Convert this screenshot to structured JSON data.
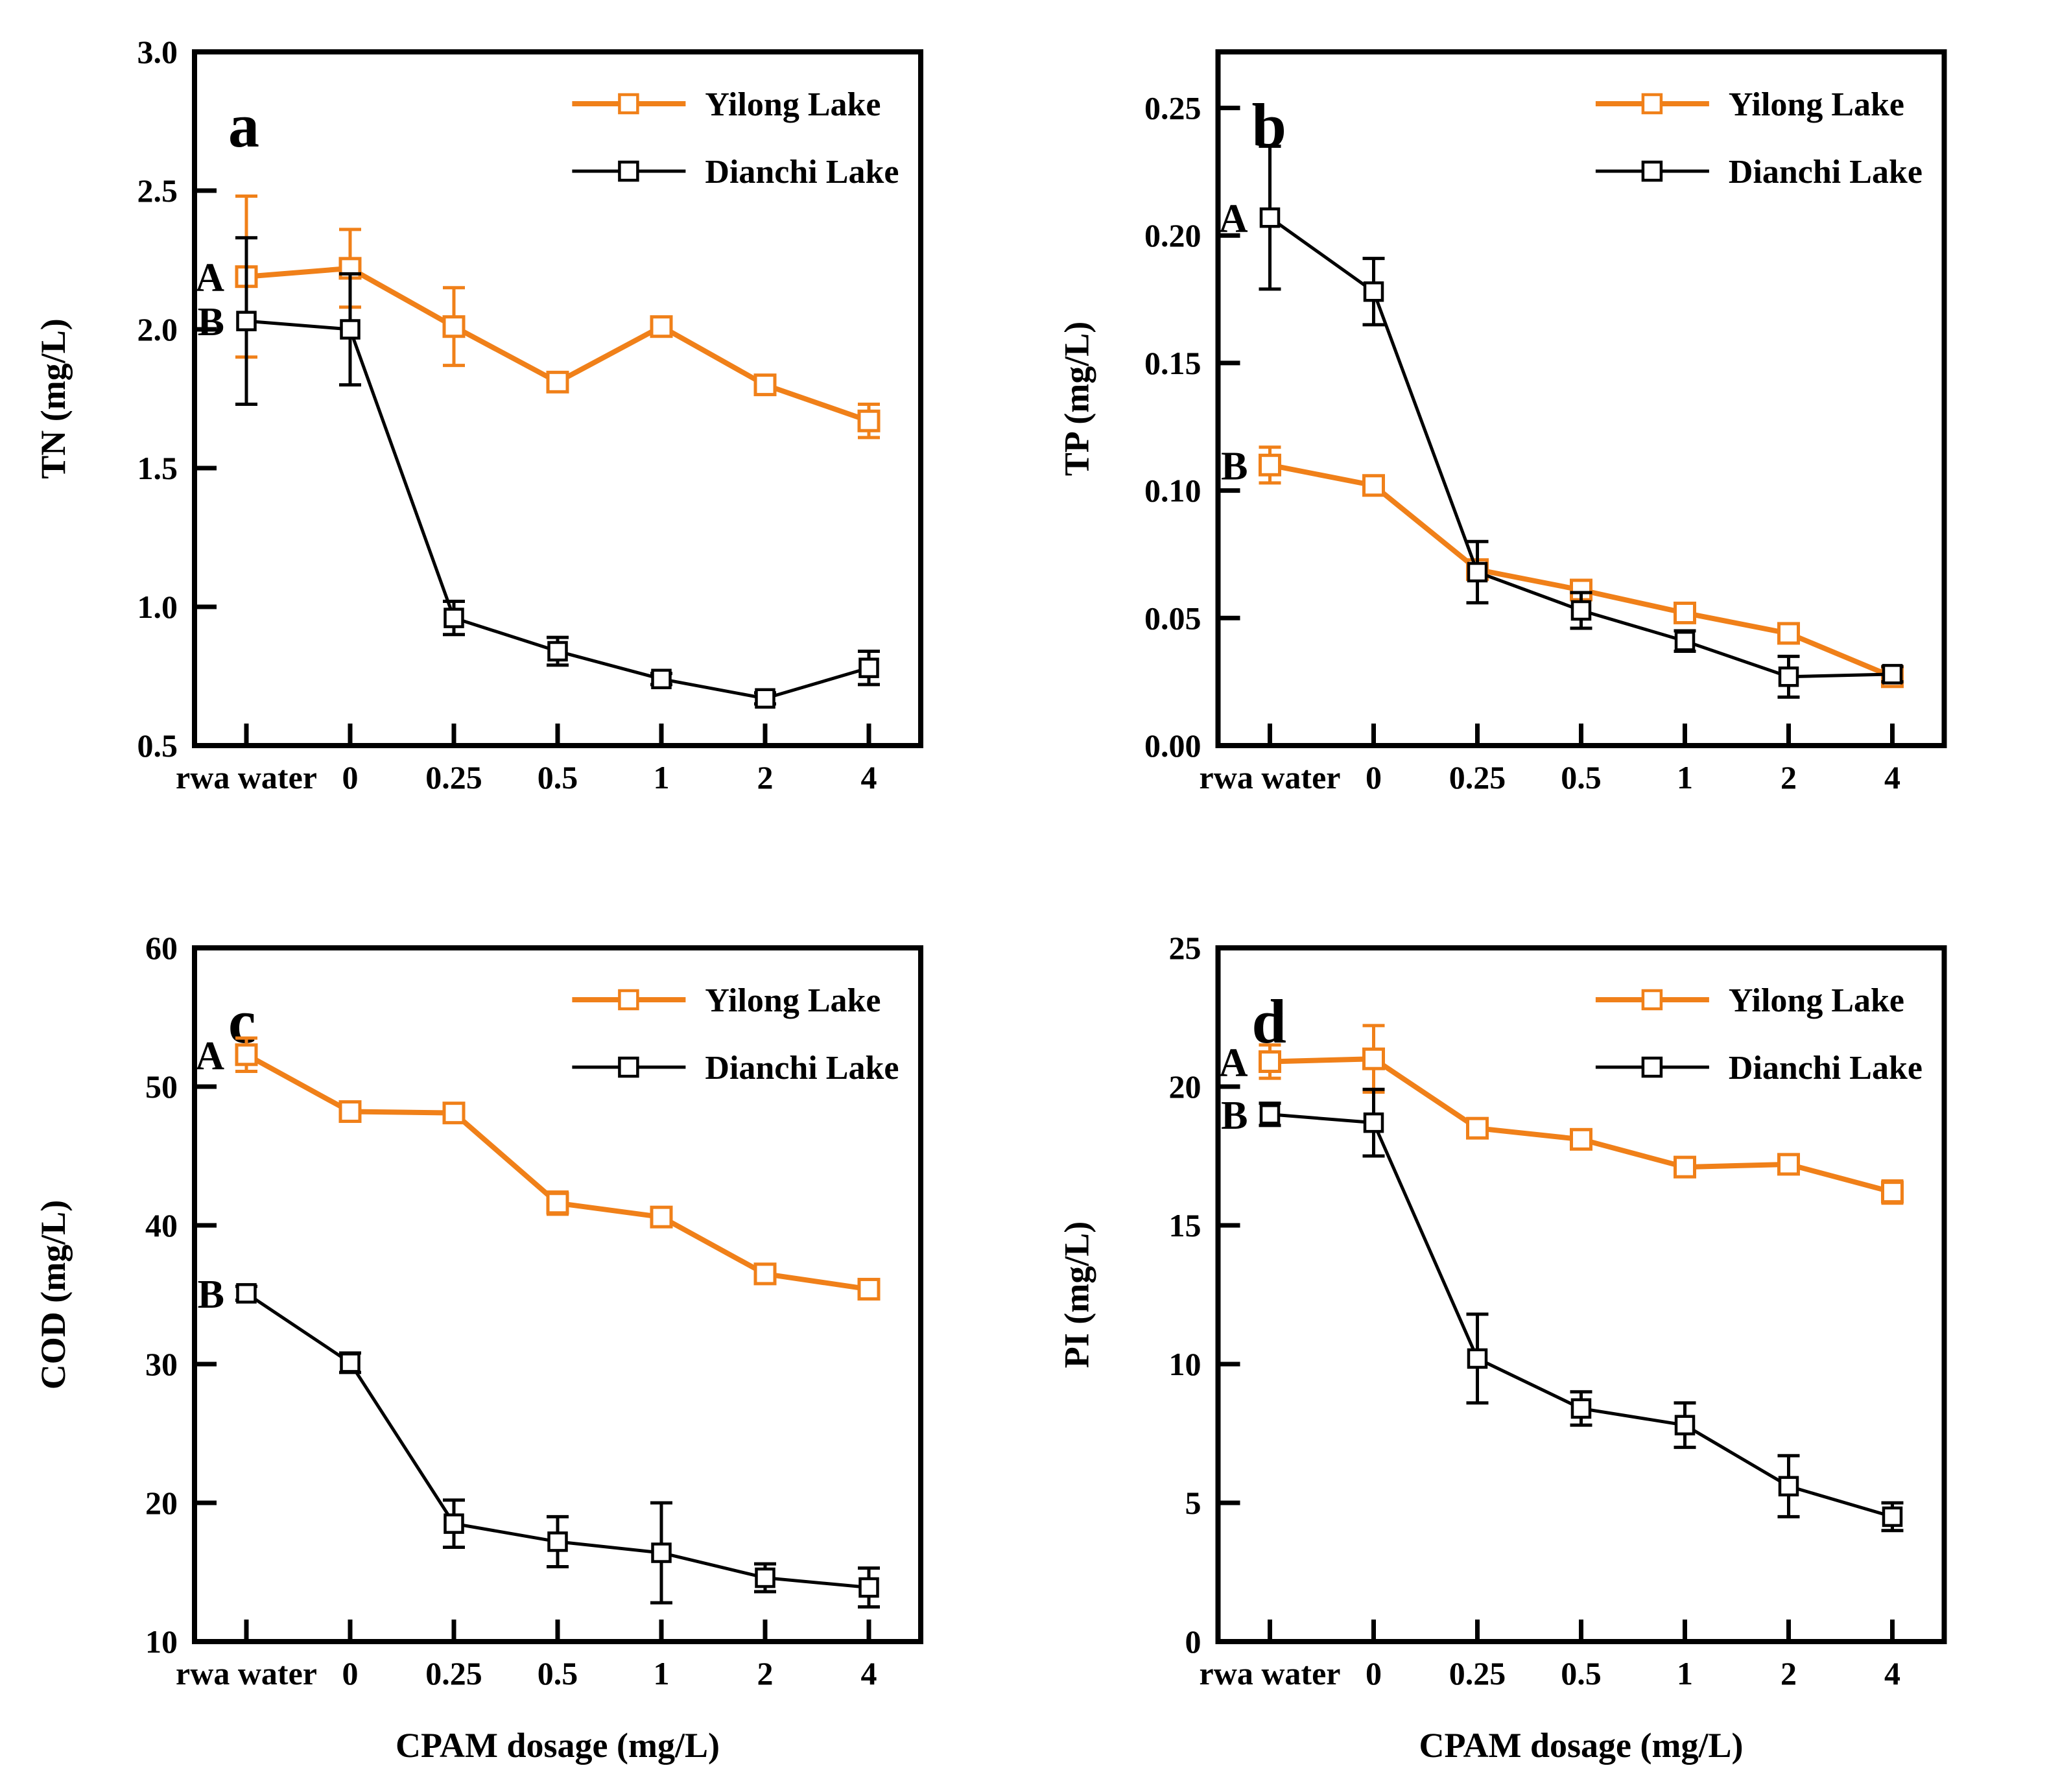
{
  "page": {
    "background": "#FFFFFF",
    "accent_orange": "#F08019",
    "series_black": "#000000"
  },
  "chart_data": [
    {
      "panel": "a",
      "type": "line",
      "ylabel": "TN (mg/L)",
      "xlabel": "",
      "categories": [
        "rwa water",
        "0",
        "0.25",
        "0.5",
        "1",
        "2",
        "4"
      ],
      "ylim": [
        0.5,
        3.0
      ],
      "yticks": [
        {
          "value": 0.5,
          "label": "0.5"
        },
        {
          "value": 1.0,
          "label": "1.0"
        },
        {
          "value": 1.5,
          "label": "1.5"
        },
        {
          "value": 2.0,
          "label": "2.0"
        },
        {
          "value": 2.5,
          "label": "2.5"
        },
        {
          "value": 3.0,
          "label": "3.0"
        }
      ],
      "grid": false,
      "legend_position": "top-right",
      "series": [
        {
          "name": "Yilong Lake",
          "color": "#F08019",
          "marker": "open-square",
          "values": [
            2.19,
            2.22,
            2.01,
            1.81,
            2.01,
            1.8,
            1.67
          ],
          "errors": [
            0.29,
            0.14,
            0.14,
            0.03,
            0.03,
            0.03,
            0.06
          ]
        },
        {
          "name": "Dianchi Lake",
          "color": "#000000",
          "marker": "open-square",
          "values": [
            2.03,
            2.0,
            0.96,
            0.84,
            0.74,
            0.67,
            0.78
          ],
          "errors": [
            0.3,
            0.2,
            0.06,
            0.05,
            0.02,
            0.02,
            0.06
          ]
        }
      ],
      "annotations": [
        {
          "text": "A",
          "series_index": 0,
          "category_index": 0
        },
        {
          "text": "B",
          "series_index": 1,
          "category_index": 0
        }
      ]
    },
    {
      "panel": "b",
      "type": "line",
      "ylabel": "TP (mg/L)",
      "xlabel": "",
      "categories": [
        "rwa water",
        "0",
        "0.25",
        "0.5",
        "1",
        "2",
        "4"
      ],
      "ylim": [
        0.0,
        0.272
      ],
      "yticks": [
        {
          "value": 0.0,
          "label": "0.00"
        },
        {
          "value": 0.05,
          "label": "0.05"
        },
        {
          "value": 0.1,
          "label": "0.10"
        },
        {
          "value": 0.15,
          "label": "0.15"
        },
        {
          "value": 0.2,
          "label": "0.20"
        },
        {
          "value": 0.25,
          "label": "0.25"
        }
      ],
      "grid": false,
      "legend_position": "top-right",
      "series": [
        {
          "name": "Yilong Lake",
          "color": "#F08019",
          "marker": "open-square",
          "values": [
            0.11,
            0.102,
            0.069,
            0.061,
            0.052,
            0.044,
            0.027
          ],
          "errors": [
            0.007,
            0.003,
            0.003,
            0.003,
            0.002,
            0.003,
            0.003
          ]
        },
        {
          "name": "Dianchi Lake",
          "color": "#000000",
          "marker": "open-square",
          "values": [
            0.207,
            0.178,
            0.068,
            0.053,
            0.041,
            0.027,
            0.028
          ],
          "errors": [
            0.028,
            0.013,
            0.012,
            0.007,
            0.004,
            0.008,
            0.003
          ]
        }
      ],
      "annotations": [
        {
          "text": "A",
          "series_index": 1,
          "category_index": 0
        },
        {
          "text": "B",
          "series_index": 0,
          "category_index": 0
        }
      ]
    },
    {
      "panel": "c",
      "type": "line",
      "ylabel": "COD (mg/L)",
      "xlabel": "CPAM dosage (mg/L)",
      "categories": [
        "rwa water",
        "0",
        "0.25",
        "0.5",
        "1",
        "2",
        "4"
      ],
      "ylim": [
        10,
        60
      ],
      "yticks": [
        {
          "value": 10,
          "label": "10"
        },
        {
          "value": 20,
          "label": "20"
        },
        {
          "value": 30,
          "label": "30"
        },
        {
          "value": 40,
          "label": "40"
        },
        {
          "value": 50,
          "label": "50"
        },
        {
          "value": 60,
          "label": "60"
        }
      ],
      "grid": false,
      "legend_position": "top-right",
      "series": [
        {
          "name": "Yilong Lake",
          "color": "#F08019",
          "marker": "open-square",
          "values": [
            52.3,
            48.2,
            48.1,
            41.6,
            40.6,
            36.5,
            35.4
          ],
          "errors": [
            1.2,
            0.5,
            0.5,
            0.8,
            0.5,
            0.4,
            0.4
          ]
        },
        {
          "name": "Dianchi Lake",
          "color": "#000000",
          "marker": "open-square",
          "values": [
            35.1,
            30.1,
            18.5,
            17.2,
            16.4,
            14.6,
            13.9
          ],
          "errors": [
            0.5,
            0.7,
            1.7,
            1.8,
            3.6,
            1.0,
            1.4
          ]
        }
      ],
      "annotations": [
        {
          "text": "A",
          "series_index": 0,
          "category_index": 0
        },
        {
          "text": "B",
          "series_index": 1,
          "category_index": 0
        }
      ]
    },
    {
      "panel": "d",
      "type": "line",
      "ylabel": "PI (mg/L)",
      "xlabel": "CPAM dosage (mg/L)",
      "categories": [
        "rwa water",
        "0",
        "0.25",
        "0.5",
        "1",
        "2",
        "4"
      ],
      "ylim": [
        0,
        25
      ],
      "yticks": [
        {
          "value": 0,
          "label": "0"
        },
        {
          "value": 5,
          "label": "5"
        },
        {
          "value": 10,
          "label": "10"
        },
        {
          "value": 15,
          "label": "15"
        },
        {
          "value": 20,
          "label": "20"
        },
        {
          "value": 25,
          "label": "25"
        }
      ],
      "grid": false,
      "legend_position": "top-right",
      "series": [
        {
          "name": "Yilong Lake",
          "color": "#F08019",
          "marker": "open-square",
          "values": [
            20.9,
            21.0,
            18.5,
            18.1,
            17.1,
            17.2,
            16.2
          ],
          "errors": [
            0.6,
            1.2,
            0.3,
            0.3,
            0.25,
            0.25,
            0.4
          ]
        },
        {
          "name": "Dianchi Lake",
          "color": "#000000",
          "marker": "open-square",
          "values": [
            19.0,
            18.7,
            10.2,
            8.4,
            7.8,
            5.6,
            4.5
          ],
          "errors": [
            0.4,
            1.2,
            1.6,
            0.6,
            0.8,
            1.1,
            0.5
          ]
        }
      ],
      "annotations": [
        {
          "text": "A",
          "series_index": 0,
          "category_index": 0
        },
        {
          "text": "B",
          "series_index": 1,
          "category_index": 0
        }
      ]
    }
  ]
}
